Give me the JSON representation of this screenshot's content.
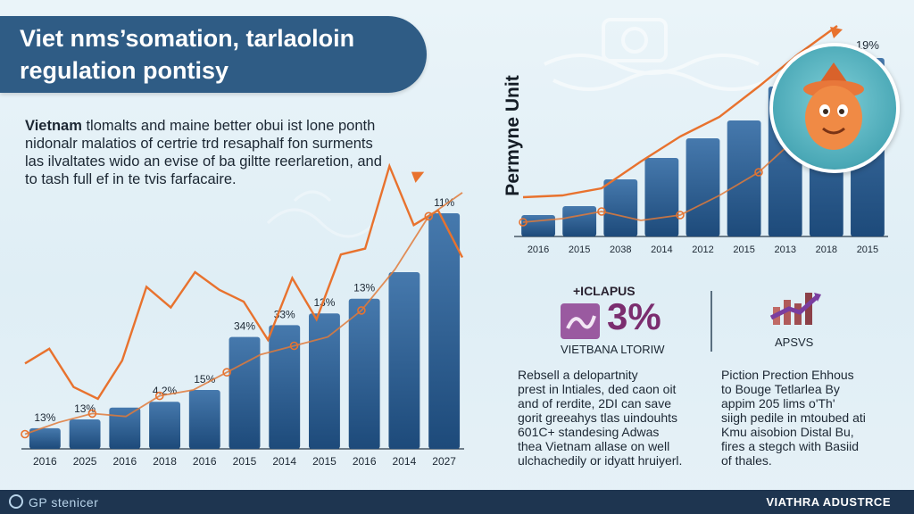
{
  "title": {
    "line1": "Viet nms’somation, tarlaoloin",
    "line2": "regulation pontisy"
  },
  "intro": {
    "bold": "Vietnam",
    "lines": [
      " tlomalts and maine better obui ist lone ponth",
      "nidonalr malatios of certrie trd resaphalf fon surments",
      "las ilvaltates wido an evise of ba giltte reerlaretion, and",
      "to tash full ef in te tvis farfacaire."
    ]
  },
  "colors": {
    "bar_top": "#3a6ea3",
    "bar_bottom": "#1f4e80",
    "line": "#e8722e",
    "accent_purple": "#8a3f8c",
    "banner": "#2f5c85"
  },
  "chart_data": [
    {
      "type": "bar",
      "title": "",
      "xlabel": "",
      "ylabel": "",
      "categories": [
        "2016",
        "2025",
        "2016",
        "2018",
        "2016",
        "2015",
        "2014",
        "2015",
        "2016",
        "2014",
        "2027"
      ],
      "values": [
        7,
        10,
        14,
        16,
        20,
        38,
        42,
        46,
        51,
        60,
        80
      ],
      "ylim": [
        0,
        100
      ],
      "data_labels": [
        "13%",
        "13%",
        "",
        "4.2%",
        "15%",
        "34%",
        "33%",
        "13%",
        "13%",
        "",
        "11%"
      ],
      "line_series": [
        {
          "name": "",
          "values": [
            29,
            34,
            21,
            17,
            30,
            55,
            48,
            60,
            54,
            50,
            37,
            58,
            44,
            66,
            68,
            96,
            76,
            81,
            65
          ]
        },
        {
          "name": "",
          "values": [
            5,
            9,
            12,
            11,
            18,
            20,
            26,
            32,
            35,
            38,
            47,
            61,
            79,
            87
          ]
        }
      ]
    },
    {
      "type": "bar",
      "title": "",
      "xlabel": "",
      "ylabel": "Permyne Unit",
      "categories": [
        "2016",
        "2015",
        "2038",
        "2014",
        "2012",
        "2015",
        "2013",
        "2018",
        "2015"
      ],
      "values": [
        12,
        17,
        32,
        44,
        55,
        65,
        84,
        94,
        100
      ],
      "ylim": [
        0,
        105
      ],
      "data_labels": [
        "",
        "",
        "",
        "",
        "",
        "",
        "",
        "",
        "19%"
      ],
      "line_series": [
        {
          "name": "",
          "values": [
            22,
            23,
            27,
            42,
            56,
            67,
            84,
            102,
            118
          ]
        },
        {
          "name": "",
          "values": [
            8,
            10,
            14,
            9,
            12,
            23,
            36,
            56,
            70
          ]
        }
      ]
    }
  ],
  "stat_left": {
    "tag": "+ICLAPUS",
    "value": "3%",
    "caption": "VIETBANA LTORIW",
    "paragraph": [
      "Rebsell a delopartnity",
      "prest in lntiales, ded caon oit",
      "and of rerdite, 2DI can save",
      "gorit greeahys tlas uindouhts",
      "601C+ standesing Adwas",
      "thea Vietnam allase on well",
      "ulchachedily or idyatt hruiyerl."
    ]
  },
  "stat_right": {
    "caption": "APSVS",
    "paragraph": [
      "Piction Prection Ehhous",
      "to Bouge Tetlarlea By",
      "appim 205 lims o'Th'",
      "siigh pedile in mtoubed ati",
      "Kmu aisobion Distal Bu,",
      "fires a stegch with Basiid",
      "of thales."
    ]
  },
  "footer": {
    "left": "GP stenicer",
    "right": "VIATHRA ADUSTRCE"
  }
}
